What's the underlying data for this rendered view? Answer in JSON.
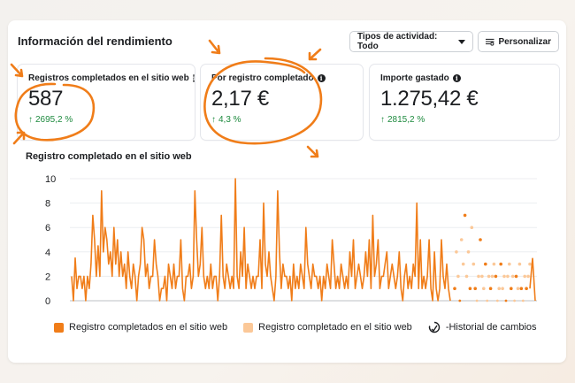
{
  "header": {
    "title": "Información del rendimiento",
    "activity_filter_label": "Tipos de actividad: Todo",
    "customize_label": "Personalizar"
  },
  "cards": [
    {
      "label": "Registros completados en el sitio web",
      "value": "587",
      "change": "2695,2 %"
    },
    {
      "label": "Por registro completado",
      "value": "2,17 €",
      "change": "4,3 %"
    },
    {
      "label": "Importe gastado",
      "value": "1.275,42 €",
      "change": "2815,2 %"
    }
  ],
  "chart_title": "Registro completado en el sitio web",
  "legend": {
    "series_actual": "Registro completados en el sitio web",
    "series_estimated": "Registro completado en el sitio web",
    "history": "-Historial de cambios"
  },
  "colors": {
    "accent": "#f07d19",
    "accent_light": "#fbc898",
    "positive": "#1d8a3e",
    "annotation": "#f07d19"
  },
  "icons": {
    "info": "info-icon",
    "caret": "caret-down-icon",
    "customize": "sliders-icon",
    "history": "history-icon",
    "up_arrow": "arrow-up-icon"
  },
  "chart_data": {
    "type": "line",
    "title": "Registro completado en el sitio web",
    "ylim": [
      0,
      10
    ],
    "yticks": [
      0,
      2,
      4,
      6,
      8,
      10
    ],
    "series": [
      {
        "name": "Registro completados en el sitio web",
        "style": "line",
        "values": [
          2,
          0,
          3.5,
          1,
          2,
          2,
          1,
          2,
          0,
          2,
          1,
          3,
          7,
          5,
          2,
          4.5,
          2,
          9,
          4,
          6,
          5,
          3,
          4,
          2,
          6,
          3,
          5,
          2,
          4,
          2,
          3,
          1,
          4,
          2,
          1,
          3,
          2,
          0,
          2,
          3,
          6,
          5,
          2,
          3,
          1,
          2,
          2,
          5,
          3,
          2,
          0,
          1,
          1,
          2,
          0,
          3,
          2,
          1,
          3,
          1,
          2,
          2,
          5,
          1,
          0,
          2,
          2,
          3,
          1,
          2,
          9,
          5,
          2,
          3,
          6,
          2,
          1,
          2,
          1,
          3,
          1,
          2,
          2,
          0,
          2,
          7,
          2,
          1,
          3,
          2,
          1,
          2,
          1,
          10,
          2,
          1,
          4,
          2,
          6,
          1,
          3,
          2,
          1,
          2,
          1,
          2,
          2,
          5,
          1,
          8,
          3,
          2,
          4,
          2,
          1,
          0,
          2,
          9,
          4,
          1,
          3,
          2,
          2,
          1,
          2,
          0,
          3,
          1,
          2,
          1,
          3,
          2,
          1,
          6,
          3,
          2,
          1,
          3,
          2,
          2,
          1,
          2,
          0,
          2,
          1,
          3,
          2,
          1,
          5,
          3,
          1,
          2,
          1,
          3,
          2,
          1,
          2,
          1,
          4,
          2,
          5,
          1,
          2,
          3,
          2,
          1,
          2,
          4,
          2,
          5,
          1,
          7,
          2,
          3,
          5,
          1,
          2,
          2,
          3,
          4,
          1,
          2,
          3,
          2,
          1,
          2,
          4,
          1,
          0,
          2,
          3,
          1,
          2,
          1,
          3,
          2,
          8,
          1,
          5,
          1,
          2,
          1,
          2,
          5,
          1,
          0,
          4,
          1,
          0,
          1,
          5,
          2,
          1,
          3,
          1,
          0
        ]
      },
      {
        "name": "Registro completado en el sitio web",
        "style": "dots",
        "values": [
          1,
          4,
          2,
          0,
          5,
          3,
          7,
          2,
          4,
          1,
          6,
          3,
          1,
          0,
          2,
          5,
          2,
          1,
          3,
          0,
          2,
          1,
          2,
          3,
          2,
          0,
          1,
          3,
          1,
          2,
          0,
          2,
          3,
          1,
          2,
          0,
          2,
          1,
          3,
          1,
          0,
          2,
          1,
          2,
          3
        ]
      }
    ]
  }
}
